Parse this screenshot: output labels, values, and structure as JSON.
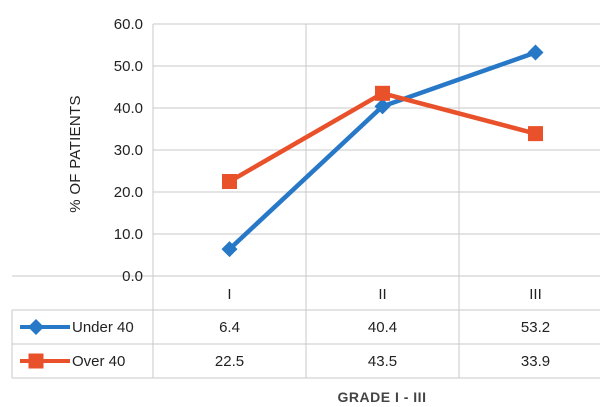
{
  "chart_data": {
    "type": "line",
    "categories": [
      "I",
      "II",
      "III"
    ],
    "series": [
      {
        "name": "Under 40",
        "values": [
          6.4,
          40.4,
          53.2
        ],
        "color": "#2878c8",
        "marker": "diamond"
      },
      {
        "name": "Over 40",
        "values": [
          22.5,
          43.5,
          33.9
        ],
        "color": "#e8512a",
        "marker": "square"
      }
    ],
    "ylabel": "% OF PATIENTS",
    "xlabel": "GRADE I - III",
    "ylim": [
      0,
      60
    ],
    "yticks": [
      "0.0",
      "10.0",
      "20.0",
      "30.0",
      "40.0",
      "50.0",
      "60.0"
    ],
    "grid": true,
    "legend": "data-table",
    "table_values": [
      [
        "6.4",
        "40.4",
        "53.2"
      ],
      [
        "22.5",
        "43.5",
        "33.9"
      ]
    ]
  }
}
